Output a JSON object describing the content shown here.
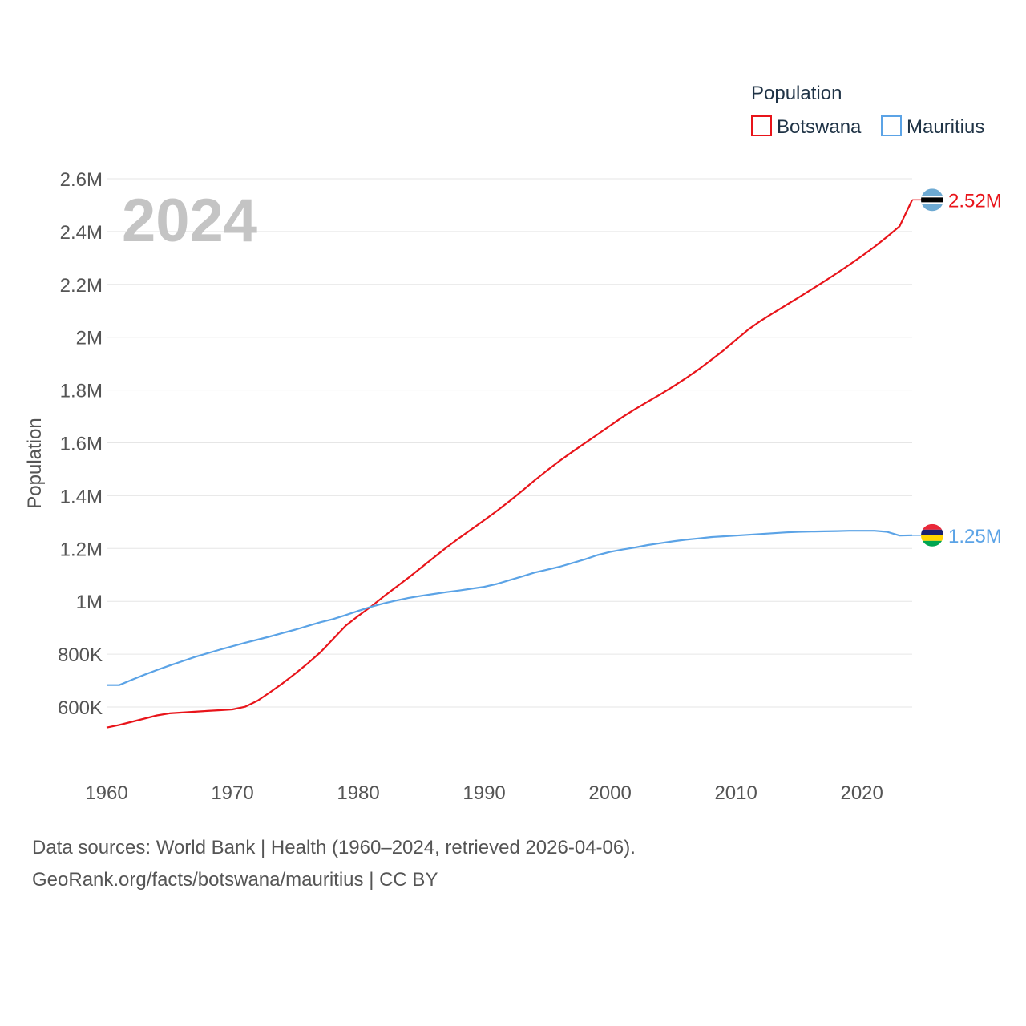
{
  "legend": {
    "title": "Population"
  },
  "year_label": "2024",
  "footer": {
    "line1": "Data sources: World Bank | Health (1960–2024, retrieved 2026-04-06).",
    "line2": "GeoRank.org/facts/botswana/mauritius | CC BY"
  },
  "chart_data": {
    "type": "line",
    "title": "",
    "xlabel": "",
    "ylabel": "Population",
    "xlim": [
      1960,
      2024
    ],
    "ylim": [
      480000,
      2600000
    ],
    "x_ticks": [
      1960,
      1970,
      1980,
      1990,
      2000,
      2010,
      2020
    ],
    "y_ticks": [
      {
        "value": 600000,
        "label": "600K"
      },
      {
        "value": 800000,
        "label": "800K"
      },
      {
        "value": 1000000,
        "label": "1M"
      },
      {
        "value": 1200000,
        "label": "1.2M"
      },
      {
        "value": 1400000,
        "label": "1.4M"
      },
      {
        "value": 1600000,
        "label": "1.6M"
      },
      {
        "value": 1800000,
        "label": "1.8M"
      },
      {
        "value": 2000000,
        "label": "2M"
      },
      {
        "value": 2200000,
        "label": "2.2M"
      },
      {
        "value": 2400000,
        "label": "2.4M"
      },
      {
        "value": 2600000,
        "label": "2.6M"
      }
    ],
    "series": [
      {
        "name": "Botswana",
        "color": "#e8141a",
        "end_label": "2.52M",
        "flag": "botswana-flag",
        "x": [
          1960,
          1961,
          1962,
          1963,
          1964,
          1965,
          1966,
          1967,
          1968,
          1969,
          1970,
          1971,
          1972,
          1973,
          1974,
          1975,
          1976,
          1977,
          1978,
          1979,
          1980,
          1981,
          1982,
          1983,
          1984,
          1985,
          1986,
          1987,
          1988,
          1989,
          1990,
          1991,
          1992,
          1993,
          1994,
          1995,
          1996,
          1997,
          1998,
          1999,
          2000,
          2001,
          2002,
          2003,
          2004,
          2005,
          2006,
          2007,
          2008,
          2009,
          2010,
          2011,
          2012,
          2013,
          2014,
          2015,
          2016,
          2017,
          2018,
          2019,
          2020,
          2021,
          2022,
          2023,
          2024
        ],
        "values": [
          522000,
          532000,
          544000,
          556000,
          568000,
          576000,
          579000,
          582000,
          585000,
          588000,
          591000,
          601000,
          624000,
          656000,
          690000,
          727000,
          766000,
          808000,
          858000,
          908000,
          945000,
          980000,
          1018000,
          1054000,
          1090000,
          1128000,
          1166000,
          1204000,
          1239000,
          1273000,
          1307000,
          1342000,
          1379000,
          1418000,
          1458000,
          1496000,
          1532000,
          1566000,
          1599000,
          1632000,
          1665000,
          1698000,
          1728000,
          1756000,
          1784000,
          1813000,
          1844000,
          1877000,
          1913000,
          1950000,
          1990000,
          2030000,
          2063000,
          2093000,
          2122000,
          2151000,
          2181000,
          2211000,
          2242000,
          2274000,
          2307000,
          2342000,
          2380000,
          2420000,
          2520000
        ]
      },
      {
        "name": "Mauritius",
        "color": "#5ba3e6",
        "end_label": "1.25M",
        "flag": "mauritius-flag",
        "x": [
          1960,
          1961,
          1962,
          1963,
          1964,
          1965,
          1966,
          1967,
          1968,
          1969,
          1970,
          1971,
          1972,
          1973,
          1974,
          1975,
          1976,
          1977,
          1978,
          1979,
          1980,
          1981,
          1982,
          1983,
          1984,
          1985,
          1986,
          1987,
          1988,
          1989,
          1990,
          1991,
          1992,
          1993,
          1994,
          1995,
          1996,
          1997,
          1998,
          1999,
          2000,
          2001,
          2002,
          2003,
          2004,
          2005,
          2006,
          2007,
          2008,
          2009,
          2010,
          2011,
          2012,
          2013,
          2014,
          2015,
          2016,
          2017,
          2018,
          2019,
          2020,
          2021,
          2022,
          2023,
          2024
        ],
        "values": [
          683000,
          683000,
          703000,
          722000,
          740000,
          757000,
          773000,
          789000,
          803000,
          817000,
          830000,
          843000,
          855000,
          867000,
          880000,
          893000,
          907000,
          921000,
          933000,
          948000,
          964000,
          979000,
          992000,
          1003000,
          1013000,
          1021000,
          1028000,
          1035000,
          1041000,
          1048000,
          1055000,
          1066000,
          1080000,
          1094000,
          1109000,
          1120000,
          1131000,
          1145000,
          1159000,
          1175000,
          1187000,
          1196000,
          1204000,
          1213000,
          1220000,
          1227000,
          1233000,
          1238000,
          1243000,
          1246000,
          1249000,
          1252000,
          1255000,
          1258000,
          1261000,
          1263000,
          1264000,
          1265000,
          1266000,
          1267000,
          1267000,
          1267000,
          1263000,
          1249000,
          1250000
        ]
      }
    ]
  }
}
